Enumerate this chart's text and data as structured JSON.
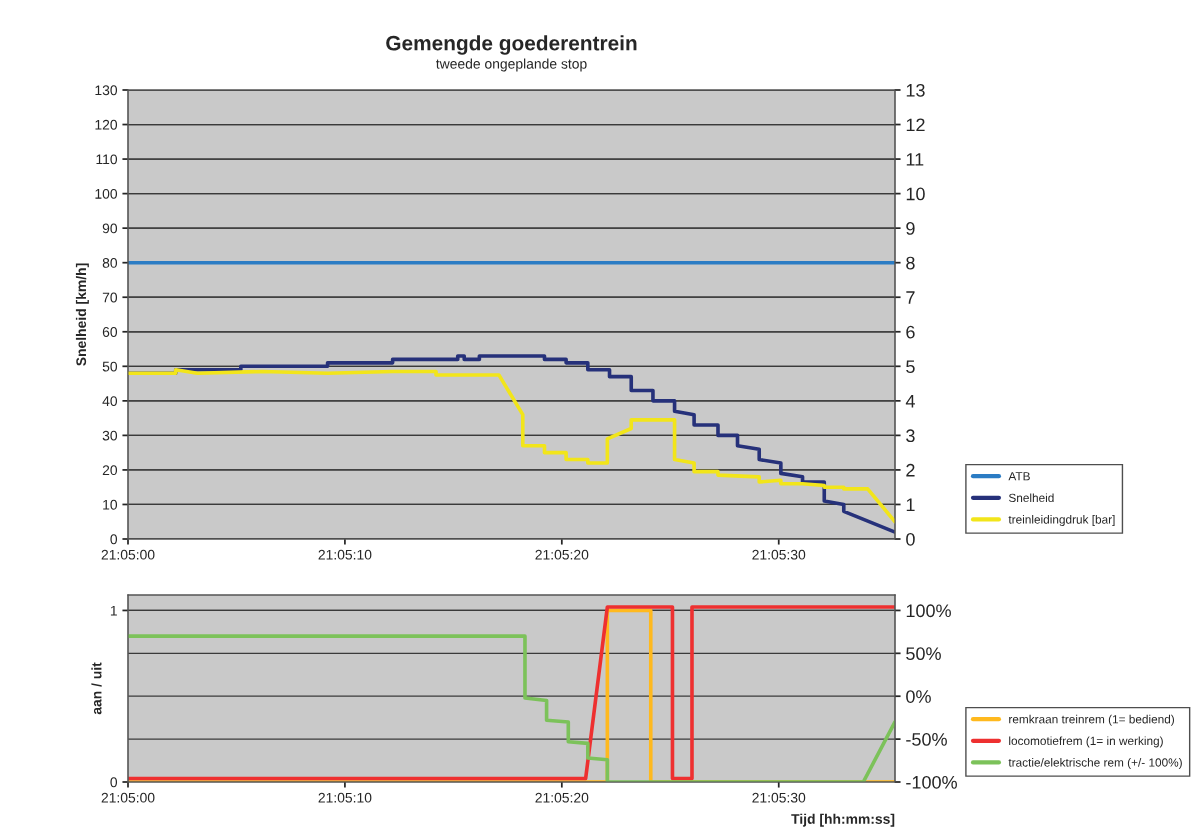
{
  "chart_data": [
    {
      "type": "line",
      "title": "Gemengde goederentrein",
      "subtitle": "tweede ongeplande stop",
      "ylabel": "Snelheid [km/h]",
      "xlim": [
        21.083333,
        21.093156
      ],
      "xticks": [
        {
          "value": 21.083333,
          "label": "21:05:00"
        },
        {
          "value": 21.086111,
          "label": "21:05:10"
        },
        {
          "value": 21.088889,
          "label": "21:05:20"
        },
        {
          "value": 21.091667,
          "label": "21:05:30"
        }
      ],
      "ylim": [
        0,
        130
      ],
      "yticks": [
        0,
        10,
        20,
        30,
        40,
        50,
        60,
        70,
        80,
        90,
        100,
        110,
        120,
        130
      ],
      "y2lim": [
        0,
        13
      ],
      "y2ticks": [
        0,
        1,
        2,
        3,
        4,
        5,
        6,
        7,
        8,
        9,
        10,
        11,
        12,
        13
      ],
      "grid": "y",
      "legend": "bottom right",
      "series": [
        {
          "name": "ATB",
          "color": "#2b7cc4",
          "x": [
            21.083333,
            21.093156
          ],
          "values": [
            80,
            80
          ]
        },
        {
          "name": "Snelheid",
          "color": "#26317a",
          "x": [
            21.083333,
            21.083944,
            21.083944,
            21.084778,
            21.084778,
            21.085889,
            21.085889,
            21.086722,
            21.086722,
            21.087556,
            21.087556,
            21.087639,
            21.087639,
            21.087833,
            21.087833,
            21.088667,
            21.088667,
            21.088944,
            21.088944,
            21.089222,
            21.089222,
            21.0895,
            21.0895,
            21.089778,
            21.089778,
            21.090056,
            21.090056,
            21.090333,
            21.090333,
            21.090583,
            21.090583,
            21.090889,
            21.090889,
            21.091139,
            21.091139,
            21.091417,
            21.091417,
            21.091694,
            21.091694,
            21.091972,
            21.091972,
            21.09225,
            21.09225,
            21.0925,
            21.0925,
            21.093156
          ],
          "values": [
            48,
            48,
            49,
            49,
            50,
            50,
            51,
            51,
            52,
            52,
            53,
            53,
            52,
            52,
            53,
            53,
            52,
            52,
            51,
            51,
            49,
            49,
            47,
            47,
            43,
            43,
            40,
            40,
            37,
            36,
            33,
            33,
            30,
            30,
            27,
            26,
            23,
            22,
            19,
            18,
            16.5,
            16.5,
            11,
            10,
            8,
            2
          ]
        },
        {
          "name": "treinleidingdruk [bar]",
          "color": "#f2e51a",
          "axis": "y2",
          "x": [
            21.083333,
            21.083944,
            21.083944,
            21.084222,
            21.085056,
            21.085889,
            21.086722,
            21.087278,
            21.087278,
            21.088083,
            21.088389,
            21.088389,
            21.088667,
            21.088667,
            21.088944,
            21.088944,
            21.089222,
            21.089222,
            21.089472,
            21.089472,
            21.089778,
            21.089778,
            21.090333,
            21.090333,
            21.090583,
            21.090583,
            21.090889,
            21.090889,
            21.091417,
            21.091417,
            21.091694,
            21.091694,
            21.091972,
            21.09225,
            21.09225,
            21.0925,
            21.0925,
            21.092806,
            21.093156
          ],
          "values": [
            4.8,
            4.8,
            4.9,
            4.8,
            4.85,
            4.8,
            4.85,
            4.85,
            4.75,
            4.75,
            3.6,
            2.7,
            2.7,
            2.5,
            2.5,
            2.3,
            2.3,
            2.2,
            2.2,
            2.9,
            3.2,
            3.45,
            3.45,
            2.3,
            2.2,
            1.95,
            1.95,
            1.85,
            1.8,
            1.65,
            1.7,
            1.6,
            1.6,
            1.55,
            1.5,
            1.5,
            1.45,
            1.45,
            0.5
          ]
        }
      ]
    },
    {
      "type": "line",
      "ylabel": "aan / uit",
      "xlabel": "Tijd [hh:mm:ss]",
      "xlim": [
        21.083333,
        21.093156
      ],
      "xticks": [
        {
          "value": 21.083333,
          "label": "21:05:00"
        },
        {
          "value": 21.086111,
          "label": "21:05:10"
        },
        {
          "value": 21.088889,
          "label": "21:05:20"
        },
        {
          "value": 21.091667,
          "label": "21:05:30"
        }
      ],
      "ylim": [
        0,
        1.09
      ],
      "yticks": [
        0,
        1
      ],
      "y2lim": [
        -100,
        118
      ],
      "y2ticks": [
        {
          "value": -100,
          "label": "-100%"
        },
        {
          "value": -50,
          "label": "-50%"
        },
        {
          "value": 0,
          "label": "0%"
        },
        {
          "value": 50,
          "label": "50%"
        },
        {
          "value": 100,
          "label": "100%"
        }
      ],
      "grid": "y",
      "legend": "bottom right",
      "series": [
        {
          "name": "remkraan treinrem (1= bediend)",
          "color": "#ffb91e",
          "x": [
            21.083333,
            21.089472,
            21.089472,
            21.090028,
            21.090028,
            21.093156
          ],
          "values": [
            0,
            0,
            1,
            1,
            0,
            0
          ]
        },
        {
          "name": "locomotiefrem (1= in werking)",
          "color": "#ee3030",
          "x": [
            21.083333,
            21.089194,
            21.089472,
            21.090306,
            21.090306,
            21.090556,
            21.090556,
            21.093156
          ],
          "values": [
            0.02,
            0.02,
            1.02,
            1.02,
            0.02,
            0.02,
            1.02,
            1.02
          ]
        },
        {
          "name": "tractie/elektrische rem (+/- 100%)",
          "color": "#7cc25a",
          "axis": "y2",
          "x": [
            21.083333,
            21.088417,
            21.088417,
            21.088694,
            21.088694,
            21.088972,
            21.088972,
            21.089222,
            21.089222,
            21.089472,
            21.089472,
            21.09275,
            21.093156
          ],
          "values": [
            70,
            70,
            -2,
            -5,
            -28,
            -30,
            -53,
            -55,
            -72,
            -74,
            -100,
            -100,
            -30
          ]
        }
      ]
    }
  ]
}
